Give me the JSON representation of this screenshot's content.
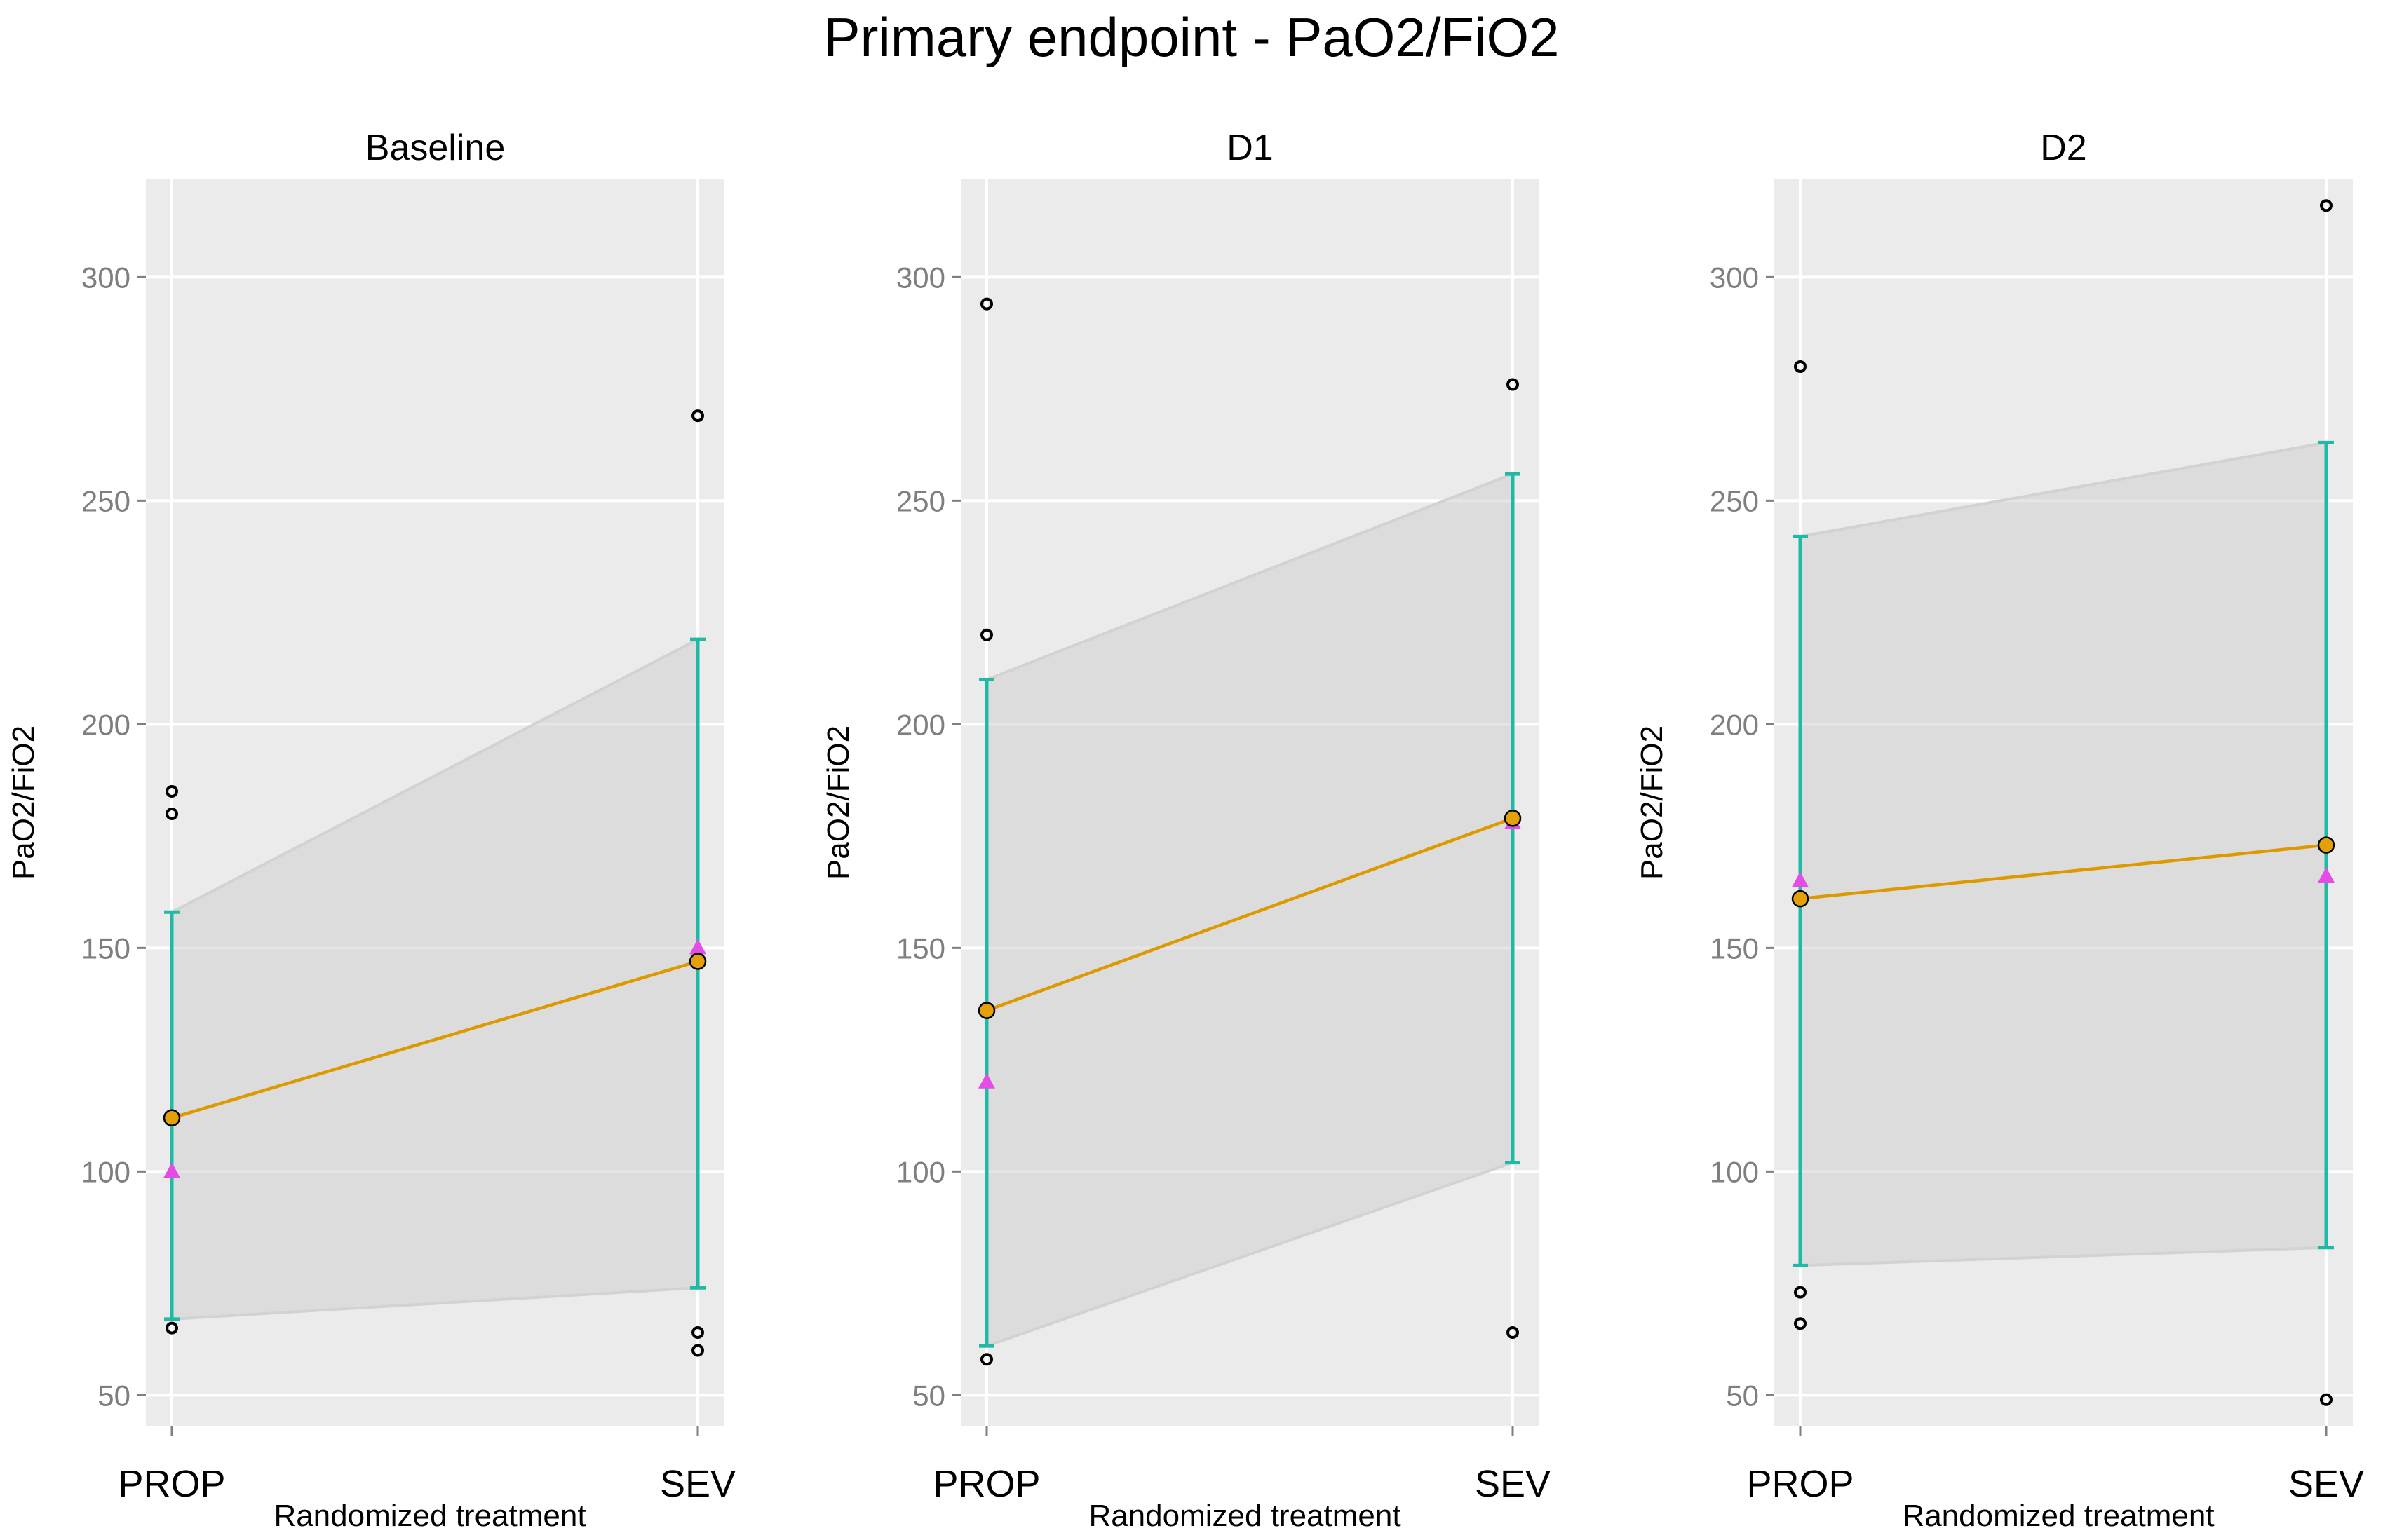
{
  "chart_data": {
    "type": "line",
    "title": "Primary endpoint - PaO2/FiO2",
    "xlabel": "Randomized treatment",
    "ylabel": "PaO2/FiO2",
    "categories": [
      "PROP",
      "SEV"
    ],
    "ylim": [
      43,
      322
    ],
    "yticks": [
      50,
      100,
      150,
      200,
      250,
      300
    ],
    "grid": true,
    "legend": "none",
    "colors": {
      "mean": "#dc9a00",
      "mean_marker": "#e3a00a",
      "median": "#e44ce8",
      "error_bar": "#1ebaa6",
      "band": "#cfcfcf",
      "panel_bg": "#ebebeb",
      "grid": "#ffffff",
      "outlier": "#000000"
    },
    "panels": [
      {
        "title": "Baseline",
        "mean": [
          112,
          147
        ],
        "median": [
          100,
          150
        ],
        "ci_lower": [
          67,
          74
        ],
        "ci_upper": [
          158,
          219
        ],
        "outliers": [
          [
            185,
            180,
            65
          ],
          [
            269,
            64,
            60
          ]
        ]
      },
      {
        "title": "D1",
        "mean": [
          136,
          179
        ],
        "median": [
          120,
          178
        ],
        "ci_lower": [
          61,
          102
        ],
        "ci_upper": [
          210,
          256
        ],
        "outliers": [
          [
            294,
            220,
            58
          ],
          [
            276,
            64
          ]
        ]
      },
      {
        "title": "D2",
        "mean": [
          161,
          173
        ],
        "median": [
          165,
          166
        ],
        "ci_lower": [
          79,
          83
        ],
        "ci_upper": [
          242,
          263
        ],
        "outliers": [
          [
            280,
            73,
            66
          ],
          [
            316,
            49
          ]
        ]
      }
    ]
  }
}
